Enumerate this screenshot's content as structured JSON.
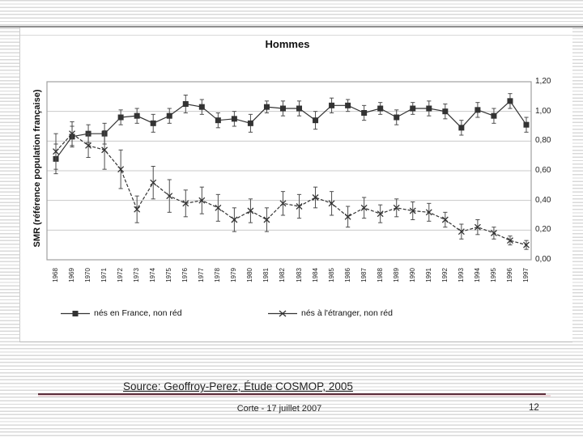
{
  "slide": {
    "source_text": "Source: Geoffroy-Perez, Étude COSMOP, 2005",
    "footer_text": "Corte - 17 juillet 2007",
    "page_number": "12"
  },
  "colors": {
    "stripe": "#d9d9d9",
    "rule_dark": "#582b38",
    "rule_light": "#f0d6da",
    "series": "#333333",
    "grid": "#c9c9c9",
    "plot_border": "#a0a0a0",
    "error_bar": "#4d4d4d"
  },
  "chart_data": {
    "type": "line",
    "title": "Hommes",
    "xlabel": "",
    "ylabel": "SMR (référence population française)",
    "ylim": [
      0,
      1.2
    ],
    "ytick_values": [
      1.2,
      1.0,
      0.8,
      0.6,
      0.4,
      0.2,
      0.0
    ],
    "ytick_labels": [
      "1,20",
      "1,00",
      "0,80",
      "0,60",
      "0,40",
      "0,20",
      "0,00"
    ],
    "grid": true,
    "legend_position": "bottom",
    "x": [
      1968,
      1969,
      1970,
      1971,
      1972,
      1973,
      1974,
      1975,
      1976,
      1977,
      1978,
      1979,
      1980,
      1981,
      1982,
      1983,
      1984,
      1985,
      1986,
      1987,
      1988,
      1989,
      1990,
      1991,
      1992,
      1993,
      1994,
      1995,
      1996,
      1997
    ],
    "series": [
      {
        "name": "nés en France, non réd",
        "marker": "square",
        "line_style": "solid",
        "values": [
          0.68,
          0.83,
          0.85,
          0.85,
          0.96,
          0.97,
          0.92,
          0.97,
          1.05,
          1.03,
          0.94,
          0.95,
          0.92,
          1.03,
          1.02,
          1.02,
          0.94,
          1.04,
          1.04,
          0.99,
          1.02,
          0.96,
          1.02,
          1.02,
          1.0,
          0.89,
          1.01,
          0.97,
          1.07,
          0.91
        ],
        "errors": [
          0.1,
          0.07,
          0.06,
          0.07,
          0.05,
          0.05,
          0.06,
          0.05,
          0.06,
          0.05,
          0.05,
          0.05,
          0.06,
          0.04,
          0.05,
          0.05,
          0.06,
          0.05,
          0.04,
          0.05,
          0.04,
          0.05,
          0.04,
          0.05,
          0.05,
          0.05,
          0.05,
          0.05,
          0.05,
          0.05
        ]
      },
      {
        "name": "nés à l'étranger, non réd",
        "marker": "x",
        "line_style": "dashed",
        "values": [
          0.73,
          0.85,
          0.77,
          0.74,
          0.61,
          0.34,
          0.52,
          0.43,
          0.38,
          0.4,
          0.35,
          0.27,
          0.33,
          0.27,
          0.38,
          0.36,
          0.42,
          0.38,
          0.29,
          0.35,
          0.31,
          0.35,
          0.33,
          0.32,
          0.27,
          0.19,
          0.22,
          0.18,
          0.13,
          0.1
        ],
        "errors": [
          0.12,
          0.08,
          0.08,
          0.13,
          0.13,
          0.09,
          0.11,
          0.11,
          0.09,
          0.09,
          0.09,
          0.08,
          0.08,
          0.08,
          0.08,
          0.08,
          0.07,
          0.08,
          0.07,
          0.07,
          0.06,
          0.06,
          0.06,
          0.06,
          0.05,
          0.05,
          0.05,
          0.04,
          0.03,
          0.03
        ]
      }
    ]
  }
}
